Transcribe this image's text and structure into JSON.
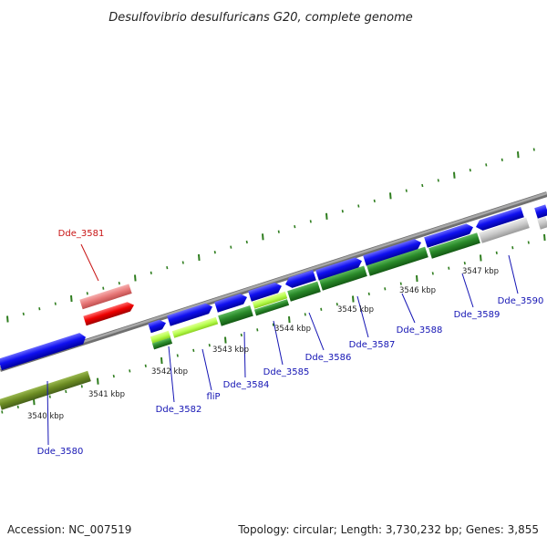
{
  "title": "Desulfovibrio desulfuricans G20, complete genome",
  "footer": {
    "accession": "Accession: NC_007519",
    "summary": "Topology: circular; Length: 3,730,232 bp; Genes: 3,855"
  },
  "colors": {
    "background": "#ffffff",
    "backbone": "#8c8c8c",
    "tick": "#2e7d1e",
    "forward_cds": "#0b0be0",
    "reverse_cds": "#2a8a2a",
    "pseudo_light": "#b8ff50",
    "olive": "#6b8b22",
    "gray_gene": "#c8c8c8",
    "highlight_forward": "#e87878",
    "highlight_reverse": "#ee0000",
    "label_blue": "#1414b4",
    "label_red": "#c81414"
  },
  "kbp_ticks": [
    {
      "label": "3540 kbp"
    },
    {
      "label": "3541 kbp"
    },
    {
      "label": "3542 kbp"
    },
    {
      "label": "3543 kbp"
    },
    {
      "label": "3544 kbp"
    },
    {
      "label": "3545 kbp"
    },
    {
      "label": "3546 kbp"
    },
    {
      "label": "3547 kbp"
    }
  ],
  "genes": [
    {
      "label": "Dde_3580",
      "color": "blue"
    },
    {
      "label": "Dde_3581",
      "color": "red"
    },
    {
      "label": "Dde_3582",
      "color": "blue"
    },
    {
      "label": "fliP",
      "color": "blue"
    },
    {
      "label": "Dde_3584",
      "color": "blue"
    },
    {
      "label": "Dde_3585",
      "color": "blue"
    },
    {
      "label": "Dde_3586",
      "color": "blue"
    },
    {
      "label": "Dde_3587",
      "color": "blue"
    },
    {
      "label": "Dde_3588",
      "color": "blue"
    },
    {
      "label": "Dde_3589",
      "color": "blue"
    },
    {
      "label": "Dde_3590",
      "color": "blue"
    }
  ]
}
